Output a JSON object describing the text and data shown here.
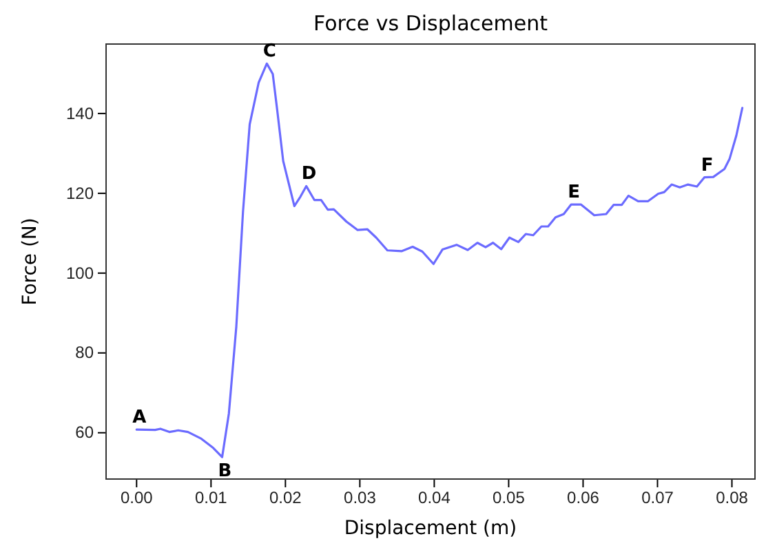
{
  "chart_data": {
    "type": "line",
    "title": "Force vs Displacement",
    "xlabel": "Displacement (m)",
    "ylabel": "Force (N)",
    "x": [
      0,
      0.0025,
      0.0032,
      0.0044,
      0.0056,
      0.0069,
      0.0087,
      0.0103,
      0.0115,
      0.0124,
      0.0134,
      0.0143,
      0.0152,
      0.0164,
      0.0175,
      0.0183,
      0.0189,
      0.0197,
      0.0212,
      0.022,
      0.0228,
      0.0239,
      0.0248,
      0.0257,
      0.0265,
      0.0282,
      0.0297,
      0.031,
      0.0322,
      0.0337,
      0.0356,
      0.0371,
      0.0384,
      0.0399,
      0.0411,
      0.043,
      0.0445,
      0.0458,
      0.0469,
      0.0479,
      0.049,
      0.0501,
      0.0513,
      0.0523,
      0.0533,
      0.0544,
      0.0553,
      0.0563,
      0.0574,
      0.0584,
      0.0597,
      0.0615,
      0.0631,
      0.0641,
      0.0652,
      0.0661,
      0.0674,
      0.0687,
      0.0701,
      0.0709,
      0.0719,
      0.073,
      0.0741,
      0.0753,
      0.0763,
      0.0775,
      0.079,
      0.0797,
      0.0806,
      0.0814
    ],
    "series": [
      {
        "color": "#6b6bff",
        "values": [
          60.8,
          60.7,
          61.0,
          60.2,
          60.6,
          60.2,
          58.5,
          56.2,
          53.9,
          64.8,
          86.6,
          115.4,
          137.3,
          147.7,
          152.5,
          149.9,
          140.8,
          128.1,
          116.8,
          119.1,
          121.8,
          118.3,
          118.3,
          115.9,
          116.0,
          112.9,
          110.8,
          111.0,
          108.9,
          105.7,
          105.5,
          106.6,
          105.4,
          102.3,
          105.9,
          107.1,
          105.8,
          107.6,
          106.5,
          107.6,
          106.0,
          108.9,
          107.8,
          109.8,
          109.5,
          111.7,
          111.7,
          114.0,
          114.8,
          117.2,
          117.2,
          114.5,
          114.8,
          117.1,
          117.1,
          119.4,
          118.0,
          118.0,
          119.9,
          120.3,
          122.2,
          121.5,
          122.2,
          121.7,
          124.0,
          124.1,
          126.1,
          128.7,
          134.5,
          141.4
        ]
      }
    ],
    "xlim": [
      -0.0041,
      0.0831
    ],
    "ylim": [
      48.4,
      157.4
    ],
    "xticks": [
      {
        "value": 0,
        "label": "0.00"
      },
      {
        "value": 0.01,
        "label": "0.01"
      },
      {
        "value": 0.02,
        "label": "0.02"
      },
      {
        "value": 0.03,
        "label": "0.03"
      },
      {
        "value": 0.04,
        "label": "0.04"
      },
      {
        "value": 0.05,
        "label": "0.05"
      },
      {
        "value": 0.06,
        "label": "0.06"
      },
      {
        "value": 0.07,
        "label": "0.07"
      },
      {
        "value": 0.08,
        "label": "0.08"
      }
    ],
    "yticks": [
      60,
      80,
      100,
      120,
      140
    ],
    "annotations": [
      {
        "text": "A",
        "x": 0,
        "y": 60.8
      },
      {
        "text": "B",
        "x": 0.0115,
        "y": 53.9
      },
      {
        "text": "C",
        "x": 0.0175,
        "y": 152.5
      },
      {
        "text": "D",
        "x": 0.0228,
        "y": 121.8
      },
      {
        "text": "E",
        "x": 0.0584,
        "y": 117.2
      },
      {
        "text": "F",
        "x": 0.0763,
        "y": 124.0
      }
    ]
  }
}
